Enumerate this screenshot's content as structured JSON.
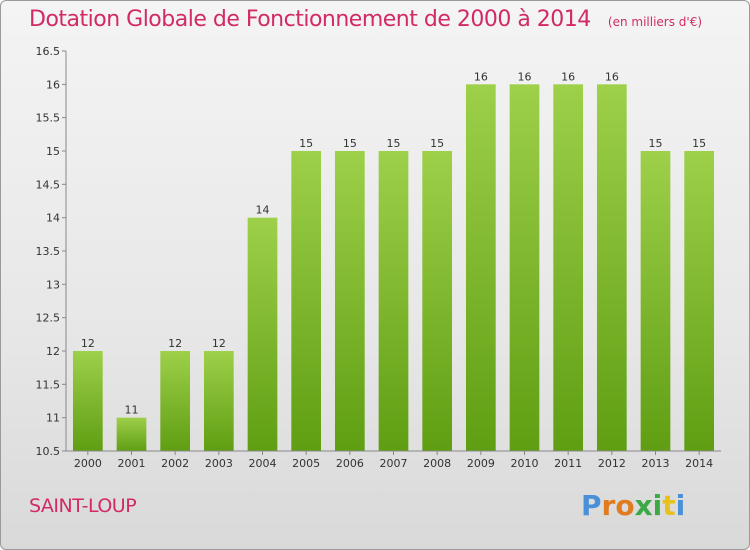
{
  "chart_title": "Dotation Globale de Fonctionnement de 2000 à 2014",
  "unit_note": "(en milliers d'€)",
  "commune": "SAINT-LOUP",
  "logo_text": "Proxiti",
  "colors": {
    "title": "#d12a66",
    "bar_top": "#9ed04a",
    "bar_bottom": "#5f9e12",
    "logo_letters": [
      "#4a90d9",
      "#e07b20",
      "#e07b20",
      "#3da846",
      "#3da846",
      "#e8c21a",
      "#4a90d9"
    ]
  },
  "chart_data": {
    "type": "bar",
    "categories": [
      "2000",
      "2001",
      "2002",
      "2003",
      "2004",
      "2005",
      "2006",
      "2007",
      "2008",
      "2009",
      "2010",
      "2011",
      "2012",
      "2013",
      "2014"
    ],
    "values": [
      12,
      11,
      12,
      12,
      14,
      15,
      15,
      15,
      15,
      16,
      16,
      16,
      16,
      15,
      15
    ],
    "data_labels": [
      "12",
      "11",
      "12",
      "12",
      "14",
      "15",
      "15",
      "15",
      "15",
      "16",
      "16",
      "16",
      "16",
      "15",
      "15"
    ],
    "title": "Dotation Globale de Fonctionnement de 2000 à 2014",
    "xlabel": "",
    "ylabel": "",
    "ylim": [
      10.5,
      16.5
    ],
    "yticks": [
      "10.5",
      "11",
      "11.5",
      "12",
      "12.5",
      "13",
      "13.5",
      "14",
      "14.5",
      "15",
      "15.5",
      "16",
      "16.5"
    ],
    "grid": false,
    "legend": "none"
  }
}
